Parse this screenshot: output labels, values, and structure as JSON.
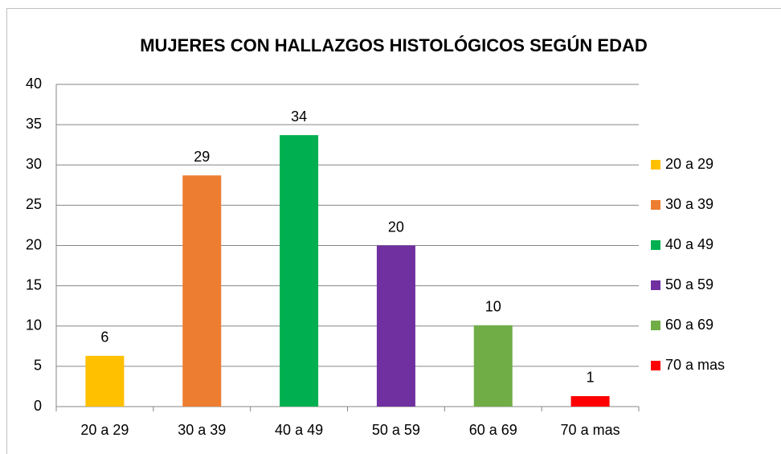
{
  "chart_data": {
    "type": "bar",
    "title": "MUJERES CON HALLAZGOS HISTOLÓGICOS SEGÚN EDAD",
    "categories": [
      "20 a 29",
      "30 a 39",
      "40 a 49",
      "50 a 59",
      "60 a 69",
      "70 a mas"
    ],
    "values": [
      6.3,
      28.7,
      33.7,
      20.0,
      10.1,
      1.3
    ],
    "value_labels": [
      "6",
      "29",
      "34",
      "20",
      "10",
      "1"
    ],
    "colors": [
      "#ffc000",
      "#ed7d31",
      "#00b050",
      "#7030a0",
      "#70ad47",
      "#ff0000"
    ],
    "ylim": [
      0,
      40
    ],
    "yticks": [
      0,
      5,
      10,
      15,
      20,
      25,
      30,
      35,
      40
    ],
    "grid": true,
    "legend": "right"
  }
}
